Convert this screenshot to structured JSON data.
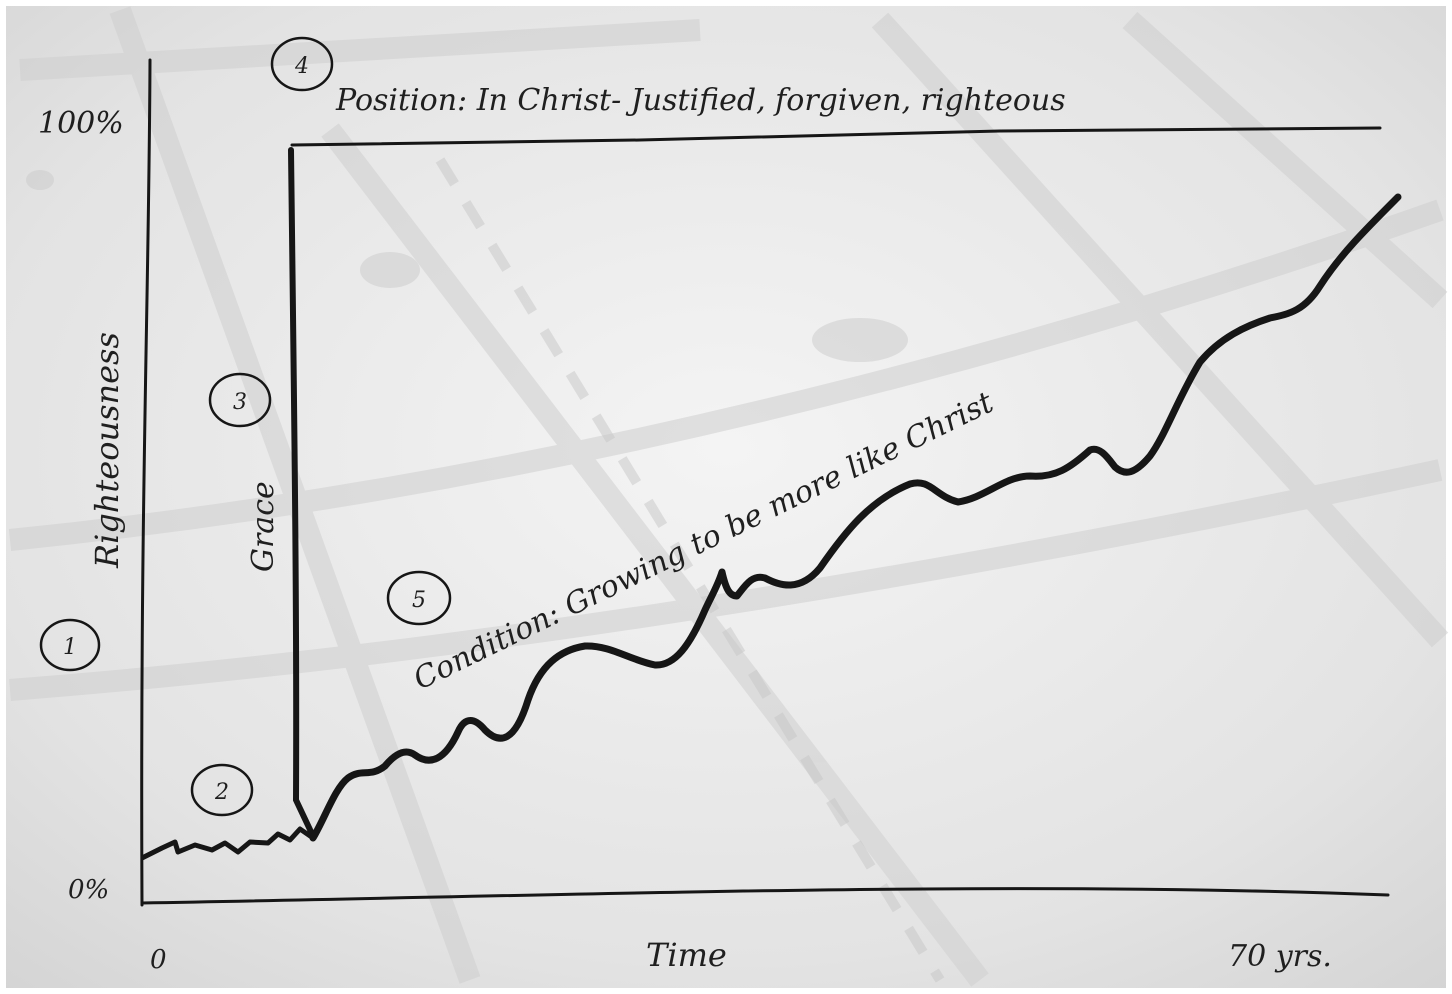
{
  "diagram": {
    "y_axis": {
      "label": "Righteousness",
      "top_label": "100%",
      "bottom_label": "0%"
    },
    "x_axis": {
      "label": "Time",
      "start_label": "0",
      "end_label": "70 yrs."
    },
    "lines": {
      "grace_label": "Grace",
      "position_label": "Position: In Christ- Justified, forgiven, righteous",
      "condition_label": "Condition: Growing to be more like Christ"
    },
    "markers": [
      {
        "number": "1"
      },
      {
        "number": "2"
      },
      {
        "number": "3"
      },
      {
        "number": "4"
      },
      {
        "number": "5"
      }
    ]
  }
}
